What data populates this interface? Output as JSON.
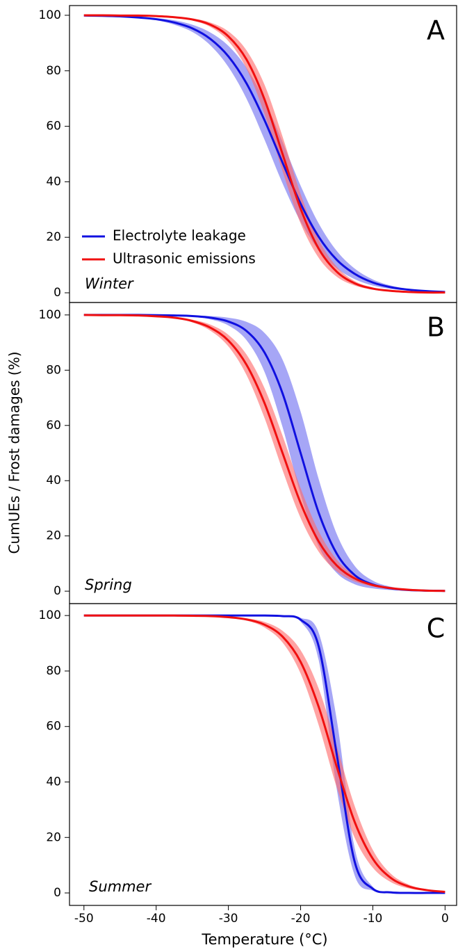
{
  "chart_data": [
    {
      "type": "line",
      "panel_label": "A",
      "annotation": "Winter",
      "legend": "lower left",
      "x": [
        -50,
        -47.5,
        -45,
        -42.5,
        -40,
        -37.5,
        -35,
        -32.5,
        -30,
        -27.5,
        -25,
        -22.5,
        -20,
        -17.5,
        -15,
        -12.5,
        -10,
        -7.5,
        -5,
        -2.5,
        0
      ],
      "xlim": [
        -52,
        1.6
      ],
      "ylim": [
        -3.5,
        103.5
      ],
      "yticks": [
        0,
        20,
        40,
        60,
        80,
        100
      ],
      "series": [
        {
          "name": "Electrolyte leakage",
          "color": "#1010e0",
          "band_color": "#6f6ff0",
          "values": [
            99.9,
            99.8,
            99.6,
            99.2,
            98.6,
            97.4,
            95.3,
            91.5,
            85.2,
            75.5,
            62.2,
            46.9,
            32.1,
            20.2,
            11.9,
            6.8,
            3.7,
            2.0,
            1.1,
            0.6,
            0.3
          ],
          "lower": [
            99.9,
            99.7,
            99.5,
            99.0,
            98.2,
            96.6,
            94.0,
            89.2,
            81.4,
            70.0,
            55.2,
            39.4,
            25.6,
            15.4,
            8.8,
            4.9,
            2.6,
            1.4,
            0.8,
            0.4,
            0.2
          ],
          "upper": [
            99.9,
            99.9,
            99.7,
            99.4,
            99.0,
            98.2,
            96.6,
            93.8,
            89.0,
            81.1,
            69.3,
            54.4,
            38.6,
            25.0,
            15.1,
            8.7,
            4.8,
            2.6,
            1.4,
            0.8,
            0.4
          ]
        },
        {
          "name": "Ultrasonic emissions",
          "color": "#f01010",
          "band_color": "#ff6a6a",
          "values": [
            100.0,
            100.0,
            99.9,
            99.9,
            99.7,
            99.3,
            98.5,
            96.6,
            92.4,
            84.1,
            69.7,
            50,
            30.3,
            15.9,
            7.6,
            3.4,
            1.5,
            0.7,
            0.3,
            0.1,
            0.1
          ],
          "lower": [
            100.0,
            100.0,
            99.9,
            99.9,
            99.6,
            99.1,
            98.1,
            95.8,
            90.7,
            80.8,
            64.4,
            43.8,
            25.0,
            12.6,
            5.8,
            2.6,
            1.1,
            0.5,
            0.2,
            0.1,
            0.1
          ],
          "upper": [
            100.0,
            100.0,
            99.9,
            99.9,
            99.8,
            99.5,
            98.9,
            97.4,
            94.2,
            87.4,
            75.0,
            56.3,
            35.6,
            19.2,
            9.4,
            4.2,
            1.9,
            0.9,
            0.4,
            0.1,
            0.1
          ]
        }
      ]
    },
    {
      "type": "line",
      "panel_label": "B",
      "annotation": "Spring",
      "y_label": "CumUEs / Frost damages (%)",
      "x": [
        -50,
        -47.5,
        -45,
        -42.5,
        -40,
        -37.5,
        -35,
        -32.5,
        -30,
        -27.5,
        -25,
        -22.5,
        -20,
        -17.5,
        -15,
        -12.5,
        -10,
        -7.5,
        -5,
        -2.5,
        0
      ],
      "xlim": [
        -52,
        1.6
      ],
      "ylim": [
        -4.5,
        104.5
      ],
      "yticks": [
        0,
        20,
        40,
        60,
        80,
        100
      ],
      "series": [
        {
          "color": "#1010e0",
          "band_color": "#6f6ff0",
          "values": [
            100.0,
            100.0,
            100.0,
            100.0,
            99.9,
            99.8,
            99.6,
            99.0,
            97.6,
            94.2,
            86.4,
            71.6,
            50,
            28.4,
            13.6,
            5.8,
            2.4,
            1.0,
            0.4,
            0.2,
            0.1
          ],
          "lower": [
            100.0,
            100.0,
            100.0,
            100.0,
            99.8,
            99.7,
            99.4,
            98.4,
            96.2,
            90.9,
            79.4,
            59.4,
            35.0,
            16.2,
            6.6,
            2.5,
            1.0,
            0.4,
            0.2,
            0.1,
            0.0
          ],
          "upper": [
            100.0,
            100.0,
            100.0,
            100.0,
            100.0,
            99.9,
            99.8,
            99.6,
            99.0,
            97.5,
            93.5,
            83.8,
            65.0,
            40.6,
            20.7,
            9.1,
            3.8,
            1.6,
            0.6,
            0.3,
            0.2
          ]
        },
        {
          "color": "#f01010",
          "band_color": "#ff6a6a",
          "values": [
            100.0,
            99.9,
            99.9,
            99.8,
            99.5,
            99.0,
            97.8,
            95.4,
            90.7,
            82.0,
            68.1,
            50,
            31.9,
            18.0,
            9.3,
            4.6,
            2.2,
            1.1,
            0.5,
            0.2,
            0.1
          ],
          "lower": [
            100.0,
            99.9,
            99.9,
            99.8,
            99.4,
            98.8,
            97.3,
            94.3,
            88.6,
            78.3,
            62.7,
            43.8,
            26.5,
            14.3,
            7.2,
            3.5,
            1.7,
            0.8,
            0.4,
            0.2,
            0.1
          ],
          "upper": [
            100.0,
            99.9,
            99.9,
            99.9,
            99.6,
            99.3,
            98.3,
            96.5,
            92.8,
            85.7,
            73.5,
            56.3,
            37.3,
            21.7,
            11.4,
            5.7,
            2.7,
            1.4,
            0.6,
            0.3,
            0.1
          ]
        }
      ]
    },
    {
      "type": "line",
      "panel_label": "C",
      "annotation": "Summer",
      "x_label": "Temperature (°C)",
      "x": [
        -50,
        -47.5,
        -45,
        -42.5,
        -40,
        -37.5,
        -35,
        -32.5,
        -30,
        -27.5,
        -25,
        -22.5,
        -20,
        -17.5,
        -15,
        -12.5,
        -10,
        -7.5,
        -5,
        -2.5,
        0
      ],
      "xlim": [
        -52,
        1.6
      ],
      "xticks": [
        -50,
        -40,
        -30,
        -20,
        -10,
        0
      ],
      "ylim": [
        -4.5,
        104.3
      ],
      "yticks": [
        0,
        20,
        40,
        60,
        80,
        100
      ],
      "series": [
        {
          "color": "#1010e0",
          "band_color": "#6f6ff0",
          "values": [
            100.0,
            100.0,
            100.0,
            100.0,
            100.0,
            100.0,
            100.0,
            100.0,
            100.0,
            100.0,
            100.0,
            99.8,
            98.5,
            88.9,
            50,
            11.1,
            1.5,
            0.2,
            0.0,
            0.0,
            0.0
          ],
          "lower": [
            100.0,
            100.0,
            100.0,
            100.0,
            100.0,
            100.0,
            100.0,
            100.0,
            100.0,
            100.0,
            100.0,
            99.7,
            97.8,
            84.0,
            37.5,
            6.2,
            0.8,
            0.1,
            0.0,
            0.0,
            0.0
          ],
          "upper": [
            100.0,
            100.0,
            100.0,
            100.0,
            100.0,
            100.0,
            100.0,
            100.0,
            100.0,
            100.0,
            100.0,
            99.9,
            99.2,
            93.8,
            62.5,
            16.0,
            2.2,
            0.3,
            0.0,
            0.0,
            0.0
          ]
        },
        {
          "color": "#f01010",
          "band_color": "#ff6a6a",
          "values": [
            100.0,
            100.0,
            100.0,
            100.0,
            100.0,
            100.0,
            99.9,
            99.8,
            99.4,
            98.6,
            96.7,
            92.4,
            83.3,
            67.1,
            45.5,
            25.5,
            12.3,
            5.4,
            2.3,
            1.0,
            0.4
          ],
          "lower": [
            100.0,
            100.0,
            100.0,
            100.0,
            100.0,
            100.0,
            99.9,
            99.7,
            99.2,
            98.2,
            95.7,
            90.3,
            79.1,
            60.5,
            38.1,
            19.8,
            9.1,
            3.9,
            1.6,
            0.7,
            0.3
          ],
          "upper": [
            100.0,
            100.0,
            100.0,
            100.0,
            100.0,
            100.0,
            99.9,
            99.9,
            99.6,
            99.0,
            97.7,
            94.5,
            87.5,
            73.7,
            52.9,
            31.2,
            15.5,
            6.9,
            3.0,
            1.3,
            0.5
          ]
        }
      ]
    }
  ]
}
